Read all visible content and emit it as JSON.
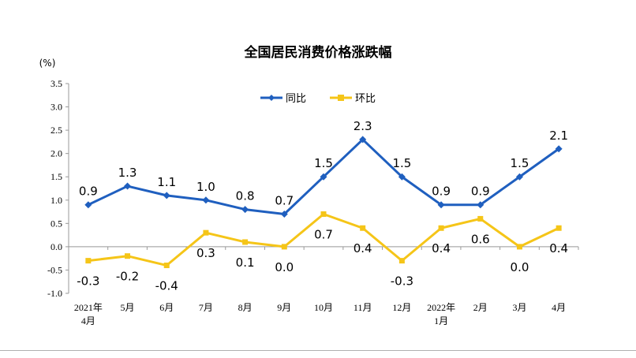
{
  "chart_data": {
    "type": "line",
    "title": "全国居民消费价格涨跌幅",
    "ylabel": "(%)",
    "ylim": [
      -1.0,
      3.5
    ],
    "yticks": [
      -1.0,
      -0.5,
      0.0,
      0.5,
      1.0,
      1.5,
      2.0,
      2.5,
      3.0,
      3.5
    ],
    "ytick_labels": [
      "-1.0",
      "-0.5",
      "0.0",
      "0.5",
      "1.0",
      "1.5",
      "2.0",
      "2.5",
      "3.0",
      "3.5"
    ],
    "categories": [
      [
        "2021年",
        "4月"
      ],
      [
        "5月"
      ],
      [
        "6月"
      ],
      [
        "7月"
      ],
      [
        "8月"
      ],
      [
        "9月"
      ],
      [
        "10月"
      ],
      [
        "11月"
      ],
      [
        "12月"
      ],
      [
        "2022年",
        "1月"
      ],
      [
        "2月"
      ],
      [
        "3月"
      ],
      [
        "4月"
      ]
    ],
    "legend_position": "top-center",
    "grid": false,
    "series": [
      {
        "name": "同比",
        "color": "#1f5fbf",
        "marker": "diamond",
        "values": [
          0.9,
          1.3,
          1.1,
          1.0,
          0.8,
          0.7,
          1.5,
          2.3,
          1.5,
          0.9,
          0.9,
          1.5,
          2.1
        ],
        "labels": [
          "0.9",
          "1.3",
          "1.1",
          "1.0",
          "0.8",
          "0.7",
          "1.5",
          "2.3",
          "1.5",
          "0.9",
          "0.9",
          "1.5",
          "2.1"
        ]
      },
      {
        "name": "环比",
        "color": "#f5c518",
        "marker": "square",
        "values": [
          -0.3,
          -0.2,
          -0.4,
          0.3,
          0.1,
          0.0,
          0.7,
          0.4,
          -0.3,
          0.4,
          0.6,
          0.0,
          0.4
        ],
        "labels": [
          "-0.3",
          "-0.2",
          "-0.4",
          "0.3",
          "0.1",
          "0.0",
          "0.7",
          "0.4",
          "-0.3",
          "0.4",
          "0.6",
          "0.0",
          "0.4"
        ]
      }
    ]
  }
}
